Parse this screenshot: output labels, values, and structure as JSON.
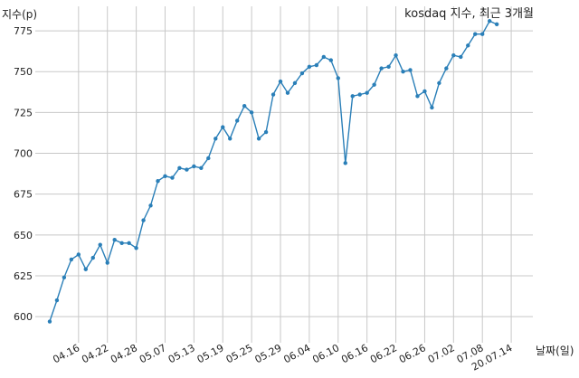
{
  "chart_data": {
    "type": "line",
    "title": "kosdaq 지수, 최근 3개월",
    "ylabel": "지수(p)",
    "xlabel": "날짜(일)",
    "ylim": [
      584,
      790
    ],
    "yticks": [
      600,
      625,
      650,
      675,
      700,
      725,
      750,
      775
    ],
    "xtick_labels": [
      "04.16",
      "04.22",
      "04.28",
      "05.07",
      "05.13",
      "05.19",
      "05.25",
      "05.29",
      "06.04",
      "06.10",
      "06.16",
      "06.22",
      "06.26",
      "07.02",
      "07.08",
      "20.07.14"
    ],
    "xtick_positions": [
      4,
      8,
      12,
      16,
      20,
      24,
      28,
      32,
      36,
      40,
      44,
      48,
      52,
      56,
      60,
      64
    ],
    "grid": true,
    "line_color": "#2a7fb8",
    "series": [
      {
        "values": [
          597,
          610,
          624,
          635,
          638,
          629,
          636,
          644,
          633,
          647,
          645,
          645,
          642,
          659,
          668,
          683,
          686,
          685,
          691,
          690,
          692,
          691,
          697,
          709,
          716,
          709,
          720,
          729,
          725,
          709,
          713,
          736,
          744,
          737,
          743,
          749,
          753,
          754,
          759,
          757,
          746,
          694,
          735,
          736,
          737,
          742,
          752,
          753,
          760,
          750,
          751,
          735,
          738,
          728,
          743,
          752,
          760,
          759,
          766,
          773,
          773,
          781,
          779
        ]
      }
    ]
  }
}
